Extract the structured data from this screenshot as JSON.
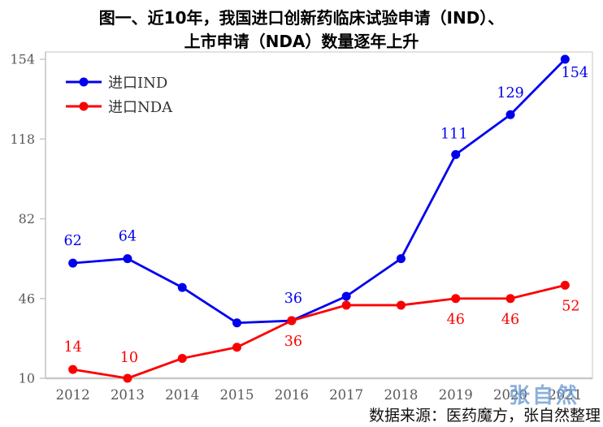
{
  "title": {
    "line1": "图一、近10年，我国进口创新药临床试验申请（IND）、",
    "line2": "上市申请（NDA）数量逐年上升"
  },
  "source_note": "数据来源：医药魔方，张自然整理",
  "watermark": {
    "text": "张自然",
    "color": "#6B9BD2"
  },
  "colors": {
    "ind_blue": "#0000EE",
    "nda_red": "#FB0000",
    "axis_text": "#595959",
    "plot_border": "#D9D9D9",
    "axis_line": "#C8C8C8",
    "title_text": "#000000"
  },
  "chart_data": {
    "type": "line",
    "title": "图一、近10年，我国进口创新药临床试验申请（IND）、上市申请（NDA）数量逐年上升",
    "categories": [
      "2012",
      "2013",
      "2014",
      "2015",
      "2016",
      "2017",
      "2018",
      "2019",
      "2020",
      "2021"
    ],
    "series": [
      {
        "name": "进口IND",
        "color": "#0000EE",
        "marker": "circle",
        "values": [
          62,
          64,
          51,
          35,
          36,
          47,
          64,
          111,
          129,
          154
        ],
        "labels": [
          {
            "i": 0,
            "text": "62",
            "dx": 0,
            "dy": -22
          },
          {
            "i": 1,
            "text": "64",
            "dx": 0,
            "dy": -22
          },
          {
            "i": 4,
            "text": "36",
            "dx": 2,
            "dy": -22
          },
          {
            "i": 7,
            "text": "111",
            "dx": -2,
            "dy": -20
          },
          {
            "i": 8,
            "text": "129",
            "dx": 0,
            "dy": -21
          },
          {
            "i": 9,
            "text": "154",
            "dx": 12,
            "dy": 22
          }
        ]
      },
      {
        "name": "进口NDA",
        "color": "#FB0000",
        "marker": "circle",
        "values": [
          14,
          10,
          19,
          24,
          36,
          43,
          43,
          46,
          46,
          52
        ],
        "labels": [
          {
            "i": 0,
            "text": "14",
            "dx": 0,
            "dy": -22
          },
          {
            "i": 1,
            "text": "10",
            "dx": 2,
            "dy": -20
          },
          {
            "i": 4,
            "text": "36",
            "dx": 2,
            "dy": 31
          },
          {
            "i": 7,
            "text": "46",
            "dx": 0,
            "dy": 31
          },
          {
            "i": 8,
            "text": "46",
            "dx": 0,
            "dy": 31
          },
          {
            "i": 9,
            "text": "52",
            "dx": 7,
            "dy": 31
          }
        ]
      }
    ],
    "ylim": [
      10,
      154
    ],
    "y_ticks": [
      10,
      46,
      82,
      118,
      154
    ],
    "xlabel": "",
    "ylabel": "",
    "grid": false,
    "legend_position": "upper-left-inside"
  }
}
